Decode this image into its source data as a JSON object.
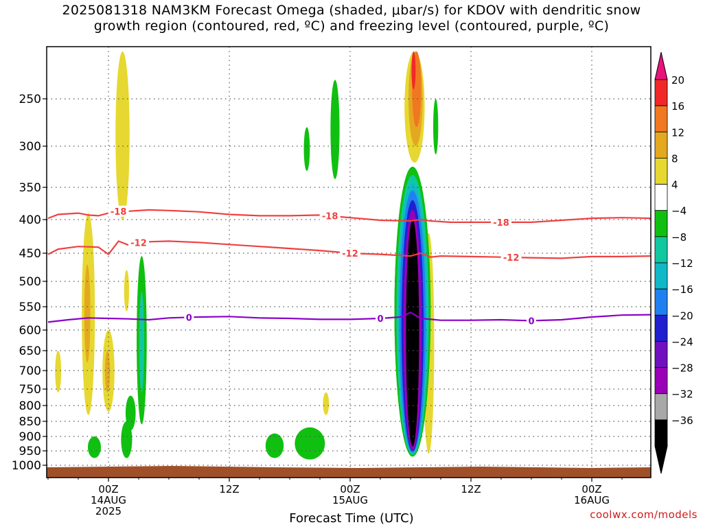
{
  "title_line1": "2025081318 NAM3KM Forecast Omega (shaded, μbar/s) for KDOV with dendritic snow",
  "title_line2": "growth region (contoured, red, ºC) and freezing level (contoured, purple, ºC)",
  "credit": "coolwx.com/models",
  "chart_data": {
    "type": "time-height cross section",
    "xlabel": "Forecast Time (UTC)",
    "x_ticks": [
      {
        "hour": 6,
        "label": [
          "00Z",
          "14AUG",
          "2025"
        ]
      },
      {
        "hour": 18,
        "label": [
          "12Z"
        ]
      },
      {
        "hour": 30,
        "label": [
          "00Z",
          "15AUG"
        ]
      },
      {
        "hour": 42,
        "label": [
          "12Z"
        ]
      },
      {
        "hour": 54,
        "label": [
          "00Z",
          "16AUG"
        ]
      }
    ],
    "xlim_hours": [
      0,
      60
    ],
    "y_axis": "pressure (mb), reversed",
    "y_ticks": [
      250,
      300,
      350,
      400,
      450,
      500,
      550,
      600,
      650,
      700,
      750,
      800,
      850,
      900,
      950,
      1000
    ],
    "grid": true,
    "colorbar": {
      "label_unit": "μbar/s",
      "ticks": [
        "20",
        "16",
        "12",
        "8",
        "4",
        "−4",
        "−8",
        "−12",
        "−16",
        "−20",
        "−24",
        "−28",
        "−32",
        "−36"
      ],
      "colors": [
        "#f02828",
        "#f07820",
        "#e4a820",
        "#e6d830",
        "#ffffff",
        "#10c010",
        "#10c8a0",
        "#10b8c8",
        "#2080f0",
        "#2020d0",
        "#7010c0",
        "#9a00b8",
        "#a8a8a8",
        "#000000"
      ],
      "top_arrow_color": "#e8147a",
      "bottom_arrow_color": "#000000"
    },
    "contours": [
      {
        "name": "-18",
        "color": "#f04040",
        "points": [
          [
            0,
            398
          ],
          [
            1,
            392
          ],
          [
            3,
            390
          ],
          [
            4,
            393
          ],
          [
            5,
            394
          ],
          [
            6,
            390
          ],
          [
            7,
            387
          ],
          [
            8,
            387
          ],
          [
            10,
            385
          ],
          [
            12,
            386
          ],
          [
            15,
            388
          ],
          [
            18,
            392
          ],
          [
            21,
            394
          ],
          [
            24,
            394
          ],
          [
            27,
            393
          ],
          [
            30,
            397
          ],
          [
            33,
            401
          ],
          [
            36,
            402
          ],
          [
            37,
            400
          ],
          [
            38,
            402
          ],
          [
            40,
            404
          ],
          [
            42,
            404
          ],
          [
            45,
            404
          ],
          [
            48,
            404
          ],
          [
            51,
            401
          ],
          [
            54,
            398
          ],
          [
            57,
            397
          ],
          [
            60,
            398
          ]
        ],
        "labels": [
          {
            "hour": 7,
            "text": "-18"
          },
          {
            "hour": 28,
            "text": "-18"
          },
          {
            "hour": 45,
            "text": "-18"
          }
        ]
      },
      {
        "name": "-12",
        "color": "#f04040",
        "points": [
          [
            0,
            452
          ],
          [
            1,
            444
          ],
          [
            3,
            440
          ],
          [
            5,
            441
          ],
          [
            6,
            452
          ],
          [
            7,
            432
          ],
          [
            8,
            438
          ],
          [
            9,
            434
          ],
          [
            10,
            433
          ],
          [
            12,
            432
          ],
          [
            15,
            434
          ],
          [
            18,
            437
          ],
          [
            21,
            440
          ],
          [
            24,
            443
          ],
          [
            27,
            446
          ],
          [
            30,
            450
          ],
          [
            33,
            452
          ],
          [
            36,
            455
          ],
          [
            37,
            450
          ],
          [
            38,
            457
          ],
          [
            39,
            455
          ],
          [
            42,
            456
          ],
          [
            45,
            457
          ],
          [
            48,
            458
          ],
          [
            51,
            459
          ],
          [
            54,
            456
          ],
          [
            57,
            456
          ],
          [
            60,
            455
          ]
        ],
        "labels": [
          {
            "hour": 9,
            "text": "-12"
          },
          {
            "hour": 30,
            "text": "-12"
          },
          {
            "hour": 46,
            "text": "-12"
          }
        ]
      },
      {
        "name": "0",
        "color": "#8b00c8",
        "points": [
          [
            0,
            583
          ],
          [
            2,
            578
          ],
          [
            4,
            574
          ],
          [
            6,
            575
          ],
          [
            8,
            576
          ],
          [
            10,
            578
          ],
          [
            12,
            574
          ],
          [
            15,
            572
          ],
          [
            18,
            571
          ],
          [
            21,
            574
          ],
          [
            24,
            575
          ],
          [
            27,
            577
          ],
          [
            30,
            577
          ],
          [
            33,
            575
          ],
          [
            35,
            572
          ],
          [
            36,
            562
          ],
          [
            37,
            575
          ],
          [
            39,
            579
          ],
          [
            42,
            579
          ],
          [
            45,
            578
          ],
          [
            48,
            580
          ],
          [
            51,
            578
          ],
          [
            54,
            572
          ],
          [
            57,
            568
          ],
          [
            60,
            567
          ]
        ],
        "labels": [
          {
            "hour": 14,
            "text": "0"
          },
          {
            "hour": 33,
            "text": "0"
          },
          {
            "hour": 48,
            "text": "0"
          }
        ]
      }
    ],
    "shaded_regions": [
      {
        "value": "-36",
        "color": "#000000",
        "hour": 36.2,
        "p_top": 400,
        "p_bottom": 935,
        "width_hours": 1.3
      },
      {
        "value": "-28",
        "color": "#9a00b8",
        "hour": 36.2,
        "p_top": 385,
        "p_bottom": 948,
        "width_hours": 1.8
      },
      {
        "value": "-20",
        "color": "#2020d0",
        "hour": 36.2,
        "p_top": 370,
        "p_bottom": 952,
        "width_hours": 2.2
      },
      {
        "value": "-16",
        "color": "#2080f0",
        "hour": 36.2,
        "p_top": 355,
        "p_bottom": 956,
        "width_hours": 2.6
      },
      {
        "value": "-12",
        "color": "#10b8c8",
        "hour": 36.2,
        "p_top": 345,
        "p_bottom": 960,
        "width_hours": 2.9
      },
      {
        "value": "-8",
        "color": "#10c8a0",
        "hour": 36.2,
        "p_top": 335,
        "p_bottom": 964,
        "width_hours": 3.2
      },
      {
        "value": "-4",
        "color": "#10c010",
        "hour": 36.2,
        "p_top": 325,
        "p_bottom": 970,
        "width_hours": 3.6
      },
      {
        "value": "4",
        "color": "#e6d830",
        "hour": 36.4,
        "p_top": 200,
        "p_bottom": 320,
        "width_hours": 2.0
      },
      {
        "value": "8",
        "color": "#e4a820",
        "hour": 36.5,
        "p_top": 200,
        "p_bottom": 300,
        "width_hours": 1.4
      },
      {
        "value": "12",
        "color": "#f07820",
        "hour": 36.6,
        "p_top": 200,
        "p_bottom": 280,
        "width_hours": 0.9
      },
      {
        "value": "16",
        "color": "#f02828",
        "hour": 36.3,
        "p_top": 200,
        "p_bottom": 240,
        "width_hours": 0.4
      },
      {
        "value": "4",
        "color": "#e6d830",
        "hour": 7.4,
        "p_top": 200,
        "p_bottom": 400,
        "width_hours": 1.4
      },
      {
        "value": "4",
        "color": "#e6d830",
        "hour": 4.0,
        "p_top": 390,
        "p_bottom": 830,
        "width_hours": 1.3
      },
      {
        "value": "4",
        "color": "#e6d830",
        "hour": 6.0,
        "p_top": 600,
        "p_bottom": 820,
        "width_hours": 1.2
      },
      {
        "value": "4",
        "color": "#e6d830",
        "hour": 1.0,
        "p_top": 650,
        "p_bottom": 760,
        "width_hours": 0.6
      },
      {
        "value": "8",
        "color": "#e4a820",
        "hour": 3.9,
        "p_top": 470,
        "p_bottom": 680,
        "width_hours": 0.6
      },
      {
        "value": "8",
        "color": "#e4a820",
        "hour": 5.9,
        "p_top": 650,
        "p_bottom": 760,
        "width_hours": 0.5
      },
      {
        "value": "4",
        "color": "#e6d830",
        "hour": 7.8,
        "p_top": 480,
        "p_bottom": 560,
        "width_hours": 0.5
      },
      {
        "value": "4",
        "color": "#e6d830",
        "hour": 7.8,
        "p_top": 900,
        "p_bottom": 975,
        "width_hours": 0.7
      },
      {
        "value": "-4",
        "color": "#10c010",
        "hour": 9.3,
        "p_top": 455,
        "p_bottom": 860,
        "width_hours": 1.0
      },
      {
        "value": "-8",
        "color": "#10c8a0",
        "hour": 9.3,
        "p_top": 520,
        "p_bottom": 760,
        "width_hours": 0.5
      },
      {
        "value": "-4",
        "color": "#10c010",
        "hour": 8.2,
        "p_top": 770,
        "p_bottom": 880,
        "width_hours": 1.0
      },
      {
        "value": "-4",
        "color": "#10c010",
        "hour": 7.8,
        "p_top": 850,
        "p_bottom": 975,
        "width_hours": 1.1
      },
      {
        "value": "-4",
        "color": "#10c010",
        "hour": 4.6,
        "p_top": 900,
        "p_bottom": 975,
        "width_hours": 1.3
      },
      {
        "value": "-4",
        "color": "#10c010",
        "hour": 28.5,
        "p_top": 230,
        "p_bottom": 340,
        "width_hours": 0.9
      },
      {
        "value": "-4",
        "color": "#10c010",
        "hour": 25.7,
        "p_top": 280,
        "p_bottom": 330,
        "width_hours": 0.6
      },
      {
        "value": "-4",
        "color": "#10c010",
        "hour": 22.5,
        "p_top": 890,
        "p_bottom": 975,
        "width_hours": 1.8
      },
      {
        "value": "-4",
        "color": "#10c010",
        "hour": 26.0,
        "p_top": 870,
        "p_bottom": 980,
        "width_hours": 3.0
      },
      {
        "value": "4",
        "color": "#e6d830",
        "hour": 27.6,
        "p_top": 760,
        "p_bottom": 830,
        "width_hours": 0.6
      },
      {
        "value": "4",
        "color": "#e6d830",
        "hour": 37.8,
        "p_top": 420,
        "p_bottom": 960,
        "width_hours": 1.1
      },
      {
        "value": "-4",
        "color": "#10c010",
        "hour": 38.5,
        "p_top": 250,
        "p_bottom": 310,
        "width_hours": 0.5
      }
    ],
    "terrain": {
      "p_surface": 1005,
      "color": "#a05028"
    }
  }
}
